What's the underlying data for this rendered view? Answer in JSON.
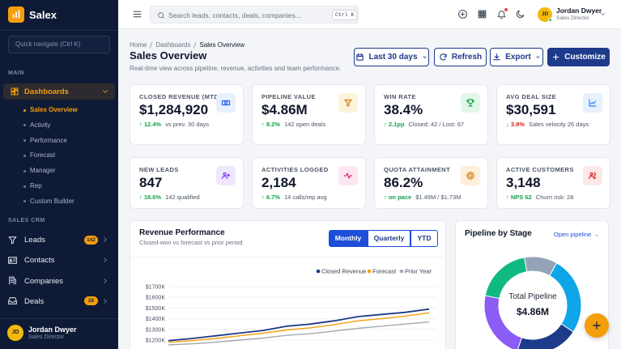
{
  "sidebar": {
    "brand": "Salex",
    "quick_nav": "Quick navigate (Ctrl K)",
    "main_label": "MAIN",
    "dashboards": "Dashboards",
    "subitems": [
      "Sales Overview",
      "Activity",
      "Performance",
      "Forecast",
      "Manager",
      "Rep",
      "Custom Builder"
    ],
    "crm_label": "SALES CRM",
    "crm_items": [
      {
        "label": "Leads",
        "badge": "142"
      },
      {
        "label": "Contacts"
      },
      {
        "label": "Companies"
      },
      {
        "label": "Deals",
        "badge": "28"
      }
    ],
    "user": {
      "initials": "JD",
      "name": "Jordan Dwyer",
      "role": "Sales Director"
    }
  },
  "topbar": {
    "search_placeholder": "Search leads, contacts, deals, companies...",
    "shortcut": "Ctrl K",
    "user": {
      "initials": "JD",
      "name": "Jordan Dwyer",
      "role": "Sales Director"
    }
  },
  "header": {
    "breadcrumb": [
      "Home",
      "Dashboards",
      "Sales Overview"
    ],
    "title": "Sales Overview",
    "subtitle": "Real-time view across pipeline, revenue, activities and team performance.",
    "buttons": [
      "Last 30 days",
      "Refresh",
      "Export",
      "Customize"
    ]
  },
  "kpis": [
    {
      "label": "CLOSED REVENUE (MTD)",
      "value": "$1,284,920",
      "delta": "↑ 12.4%",
      "note": "vs prev. 30 days",
      "trend": "up"
    },
    {
      "label": "PIPELINE VALUE",
      "value": "$4.86M",
      "delta": "↑ 8.2%",
      "note": "142 open deals",
      "trend": "up"
    },
    {
      "label": "WIN RATE",
      "value": "38.4%",
      "delta": "↑ 2.1pp",
      "note": "Closed: 42 / Lost: 67",
      "trend": "up"
    },
    {
      "label": "AVG DEAL SIZE",
      "value": "$30,591",
      "delta": "↓ 3.8%",
      "note": "Sales velocity 26 days",
      "trend": "down"
    },
    {
      "label": "NEW LEADS",
      "value": "847",
      "delta": "↑ 18.6%",
      "note": "142 qualified",
      "trend": "up"
    },
    {
      "label": "ACTIVITIES LOGGED",
      "value": "2,184",
      "delta": "↑ 6.7%",
      "note": "14 calls/rep avg",
      "trend": "up"
    },
    {
      "label": "QUOTA ATTAINMENT",
      "value": "86.2%",
      "delta": "↑ on pace",
      "note": "$1.49M / $1.73M",
      "trend": "up"
    },
    {
      "label": "ACTIVE CUSTOMERS",
      "value": "3,148",
      "delta": "↑ NPS 62",
      "note": "Churn risk: 28",
      "trend": "up"
    }
  ],
  "chart_data": [
    {
      "type": "line",
      "title": "Revenue Performance",
      "subtitle": "Closed-won vs forecast vs prior period",
      "tabs": [
        "Monthly",
        "Quarterly",
        "YTD"
      ],
      "series": [
        {
          "name": "Closed Revenue",
          "color": "#1e3a8a",
          "values": [
            1195,
            1215,
            1240,
            1265,
            1290,
            1330,
            1350,
            1380,
            1420,
            1440,
            1460,
            1490
          ]
        },
        {
          "name": "Forecast",
          "color": "#f59e0b",
          "values": [
            1180,
            1195,
            1215,
            1240,
            1265,
            1295,
            1315,
            1345,
            1380,
            1400,
            1425,
            1455
          ]
        },
        {
          "name": "Prior Year",
          "color": "#a3a9b3",
          "values": [
            1155,
            1165,
            1180,
            1200,
            1220,
            1245,
            1260,
            1285,
            1310,
            1330,
            1350,
            1370
          ]
        }
      ],
      "ylim": [
        1150,
        1750
      ],
      "yticks": [
        {
          "value": 1200,
          "label": "$1200K"
        },
        {
          "value": 1300,
          "label": "$1300K"
        },
        {
          "value": 1400,
          "label": "$1400K"
        },
        {
          "value": 1500,
          "label": "$1500K"
        },
        {
          "value": 1600,
          "label": "$1600K"
        },
        {
          "value": 1700,
          "label": "$1700K"
        }
      ],
      "grid": true
    },
    {
      "type": "pie",
      "title": "Pipeline by Stage",
      "link": "Open pipeline →",
      "center_label": "Total Pipeline",
      "center_value": "$4.86M",
      "values": [
        11,
        26,
        21,
        23,
        19
      ],
      "colors": [
        "#94a3b8",
        "#0ea5e9",
        "#1e3a8a",
        "#8b5cf6",
        "#10b981"
      ],
      "donut": true
    }
  ]
}
